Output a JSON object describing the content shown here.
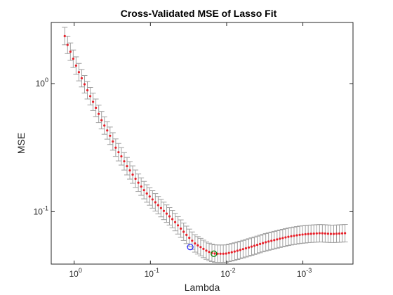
{
  "chart_data": {
    "type": "line",
    "title": "Cross-Validated MSE of Lasso Fit",
    "xlabel": "Lambda",
    "ylabel": "MSE",
    "x_scale": "log",
    "x_reversed": true,
    "y_scale": "log",
    "xlim": [
      2.0,
      0.00022
    ],
    "ylim": [
      0.039,
      3.0
    ],
    "grid": false,
    "x_ticks": [
      {
        "value": 1,
        "base": "10",
        "exp": "0"
      },
      {
        "value": 0.1,
        "base": "10",
        "exp": "-1"
      },
      {
        "value": 0.01,
        "base": "10",
        "exp": "-2"
      },
      {
        "value": 0.001,
        "base": "10",
        "exp": "-3"
      }
    ],
    "y_ticks": [
      {
        "value": 0.1,
        "base": "10",
        "exp": "-1"
      },
      {
        "value": 1,
        "base": "10",
        "exp": "0"
      }
    ],
    "series": [
      {
        "color": "#e8202a",
        "errorbar_color": "#a0a0a0",
        "lambda_range": [
          1.33,
          0.00028
        ],
        "points": 100,
        "mse": [
          2.35,
          2.05,
          1.75,
          1.48,
          1.25,
          1.07,
          0.93,
          0.81,
          0.7,
          0.6,
          0.5,
          0.43,
          0.37,
          0.31,
          0.27,
          0.23,
          0.2,
          0.175,
          0.155,
          0.14,
          0.128,
          0.117,
          0.107,
          0.098,
          0.09,
          0.082,
          0.074,
          0.067,
          0.061,
          0.056,
          0.053,
          0.05,
          0.048,
          0.047,
          0.047,
          0.047,
          0.048,
          0.049,
          0.053,
          0.058,
          0.062,
          0.064,
          0.066,
          0.067,
          0.068,
          0.067,
          0.068
        ],
        "mse_lambda": [
          1.33,
          1.24,
          1.11,
          0.992,
          0.879,
          0.778,
          0.697,
          0.624,
          0.552,
          0.489,
          0.426,
          0.368,
          0.322,
          0.281,
          0.24,
          0.206,
          0.176,
          0.151,
          0.13,
          0.113,
          0.098,
          0.0845,
          0.073,
          0.0628,
          0.054,
          0.0465,
          0.0401,
          0.0345,
          0.0297,
          0.0256,
          0.022,
          0.0189,
          0.0163,
          0.014,
          0.012,
          0.0104,
          0.0089,
          0.0077,
          0.0049,
          0.003,
          0.0019,
          0.0015,
          0.0011,
          0.00086,
          0.00059,
          0.00041,
          0.00028
        ],
        "error_ratio": 1.17
      }
    ],
    "markers": [
      {
        "type": "circle",
        "color": "#2020ff",
        "lambda": 0.03,
        "mse": 0.053
      },
      {
        "type": "circle",
        "color": "#008000",
        "lambda": 0.0147,
        "mse": 0.047
      }
    ]
  }
}
